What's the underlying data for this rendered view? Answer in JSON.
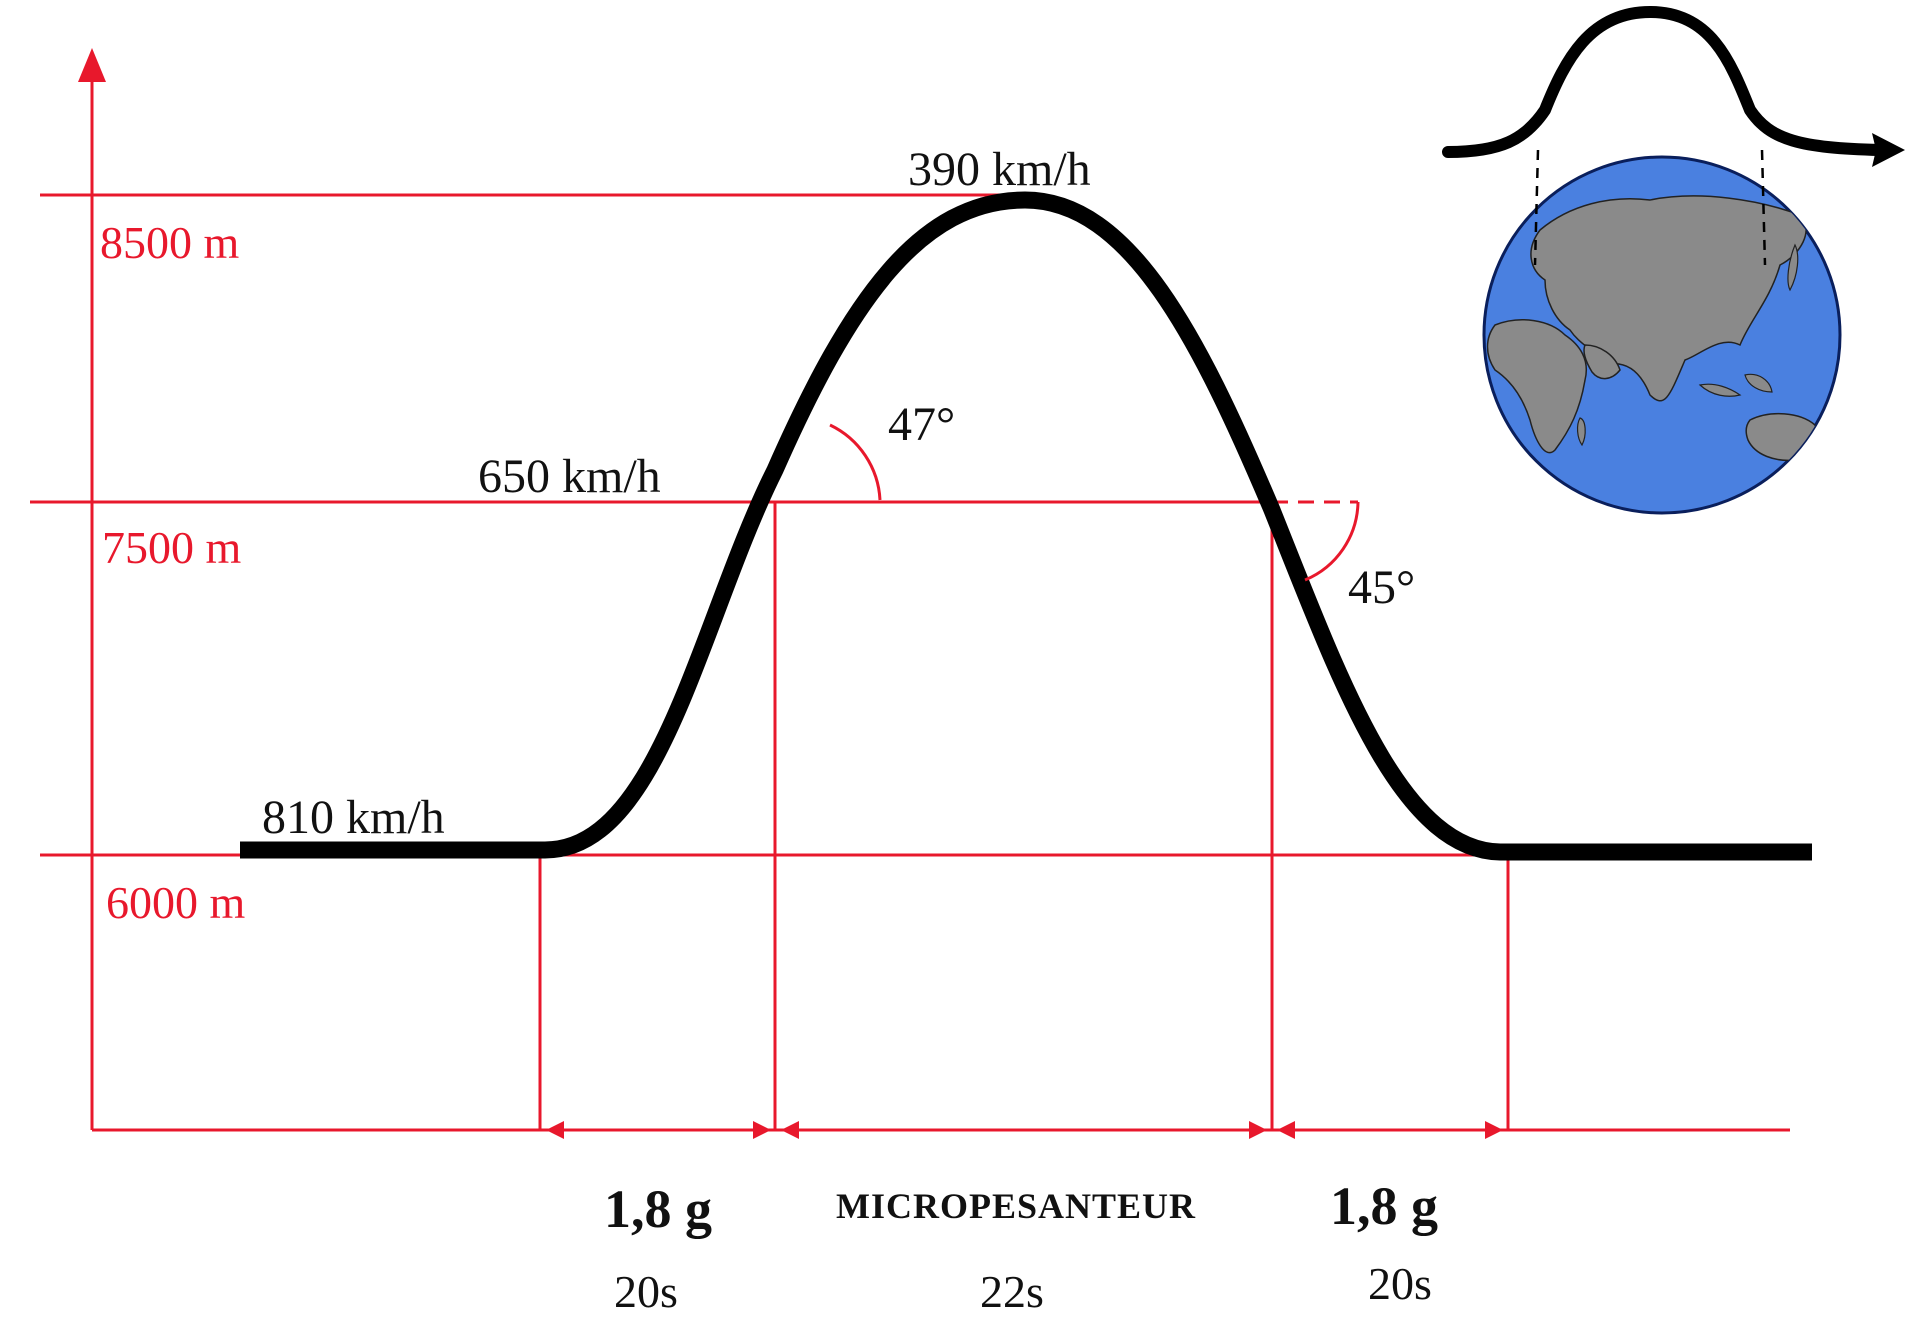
{
  "altitudes": {
    "top": "8500 m",
    "middle": "7500 m",
    "bottom": "6000 m"
  },
  "speeds": {
    "apex": "390 km/h",
    "pull_up": "650 km/h",
    "cruise": "810 km/h"
  },
  "angles": {
    "ascent": "47°",
    "descent": "45°"
  },
  "phases": [
    {
      "load": "1,8 g",
      "duration": "20s"
    },
    {
      "load": "MICROPESANTEUR",
      "duration": "22s"
    },
    {
      "load": "1,8 g",
      "duration": "20s"
    }
  ],
  "colors": {
    "axis_red": "#e8182c",
    "curve_black": "#000000",
    "ocean_blue": "#4a80e0",
    "land_grey": "#8a8a8a"
  },
  "icons": {
    "inset": "earth-globe-icon"
  }
}
